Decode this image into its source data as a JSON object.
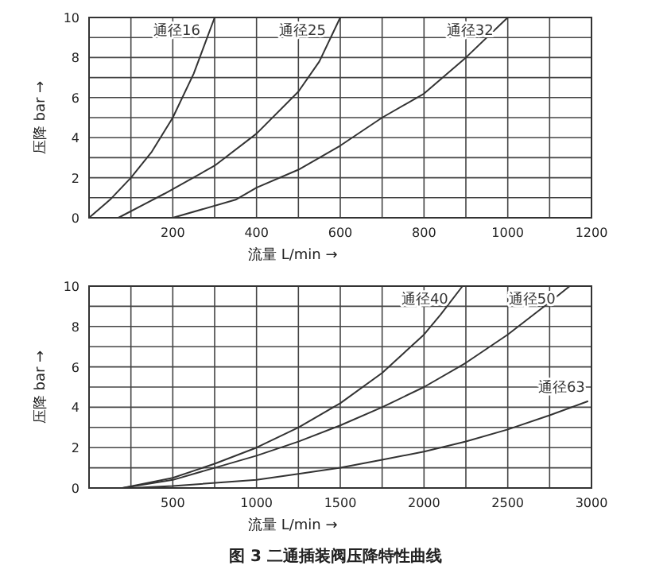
{
  "chart_data": [
    {
      "type": "line",
      "ylabel": "压降 bar →",
      "xlabel": "流量 L/min →",
      "xlim": [
        0,
        1200
      ],
      "ylim": [
        0,
        10
      ],
      "xticks": [
        {
          "value": 0,
          "label": null
        },
        {
          "value": 100,
          "label": null
        },
        200,
        {
          "value": 300,
          "label": null
        },
        400,
        {
          "value": 500,
          "label": null
        },
        600,
        {
          "value": 700,
          "label": null
        },
        800,
        {
          "value": 900,
          "label": null
        },
        1000,
        {
          "value": 1100,
          "label": null
        },
        1200
      ],
      "yticks": [
        0,
        {
          "value": 1,
          "label": null
        },
        2,
        {
          "value": 3,
          "label": null
        },
        4,
        {
          "value": 5,
          "label": null
        },
        6,
        {
          "value": 7,
          "label": null
        },
        8,
        {
          "value": 9,
          "label": null
        },
        10
      ],
      "grid": true,
      "marker": "none",
      "line_style": "solid",
      "series": [
        {
          "name": "通径16",
          "color": "#333333",
          "x": [
            0,
            50,
            100,
            150,
            200,
            250,
            275,
            300
          ],
          "values": [
            0,
            0.9,
            2,
            3.3,
            5,
            7.2,
            8.6,
            10
          ]
        },
        {
          "name": "通径25",
          "color": "#333333",
          "x": [
            70,
            180,
            300,
            400,
            500,
            550,
            600
          ],
          "values": [
            0,
            1.2,
            2.6,
            4.2,
            6.3,
            7.8,
            10
          ]
        },
        {
          "name": "通径32",
          "color": "#333333",
          "x": [
            200,
            350,
            400,
            500,
            600,
            700,
            800,
            900,
            1000
          ],
          "values": [
            0,
            0.9,
            1.5,
            2.4,
            3.6,
            5,
            6.2,
            8,
            10
          ]
        }
      ]
    },
    {
      "type": "line",
      "ylabel": "压降 bar →",
      "xlabel": "流量 L/min →",
      "xlim": [
        0,
        3000
      ],
      "ylim": [
        0,
        10
      ],
      "xticks": [
        {
          "value": 0,
          "label": null
        },
        {
          "value": 250,
          "label": null
        },
        500,
        {
          "value": 750,
          "label": null
        },
        1000,
        {
          "value": 1250,
          "label": null
        },
        1500,
        {
          "value": 1750,
          "label": null
        },
        2000,
        {
          "value": 2250,
          "label": null
        },
        2500,
        {
          "value": 2750,
          "label": null
        },
        3000
      ],
      "yticks": [
        0,
        {
          "value": 1,
          "label": null
        },
        2,
        {
          "value": 3,
          "label": null
        },
        4,
        {
          "value": 5,
          "label": null
        },
        6,
        {
          "value": 7,
          "label": null
        },
        8,
        {
          "value": 9,
          "label": null
        },
        10
      ],
      "grid": true,
      "marker": "none",
      "line_style": "solid",
      "annotations": [
        "图 3    二通插装阀压降特性曲线"
      ],
      "series": [
        {
          "name": "通径40",
          "color": "#333333",
          "x": [
            200,
            500,
            750,
            1000,
            1250,
            1500,
            1750,
            2000,
            2100,
            2230
          ],
          "values": [
            0,
            0.5,
            1.2,
            2,
            3,
            4.2,
            5.7,
            7.6,
            8.6,
            10
          ]
        },
        {
          "name": "通径50",
          "color": "#333333",
          "x": [
            200,
            500,
            750,
            1000,
            1250,
            1500,
            1750,
            2000,
            2250,
            2500,
            2750,
            2870
          ],
          "values": [
            0,
            0.4,
            1,
            1.6,
            2.3,
            3.1,
            4,
            5,
            6.2,
            7.6,
            9.2,
            10
          ]
        },
        {
          "name": "通径63",
          "color": "#333333",
          "x": [
            250,
            500,
            1000,
            1250,
            1500,
            1750,
            2000,
            2250,
            2500,
            2750,
            2980
          ],
          "values": [
            0,
            0.1,
            0.4,
            0.7,
            1,
            1.4,
            1.8,
            2.3,
            2.9,
            3.6,
            4.3
          ]
        }
      ]
    }
  ]
}
